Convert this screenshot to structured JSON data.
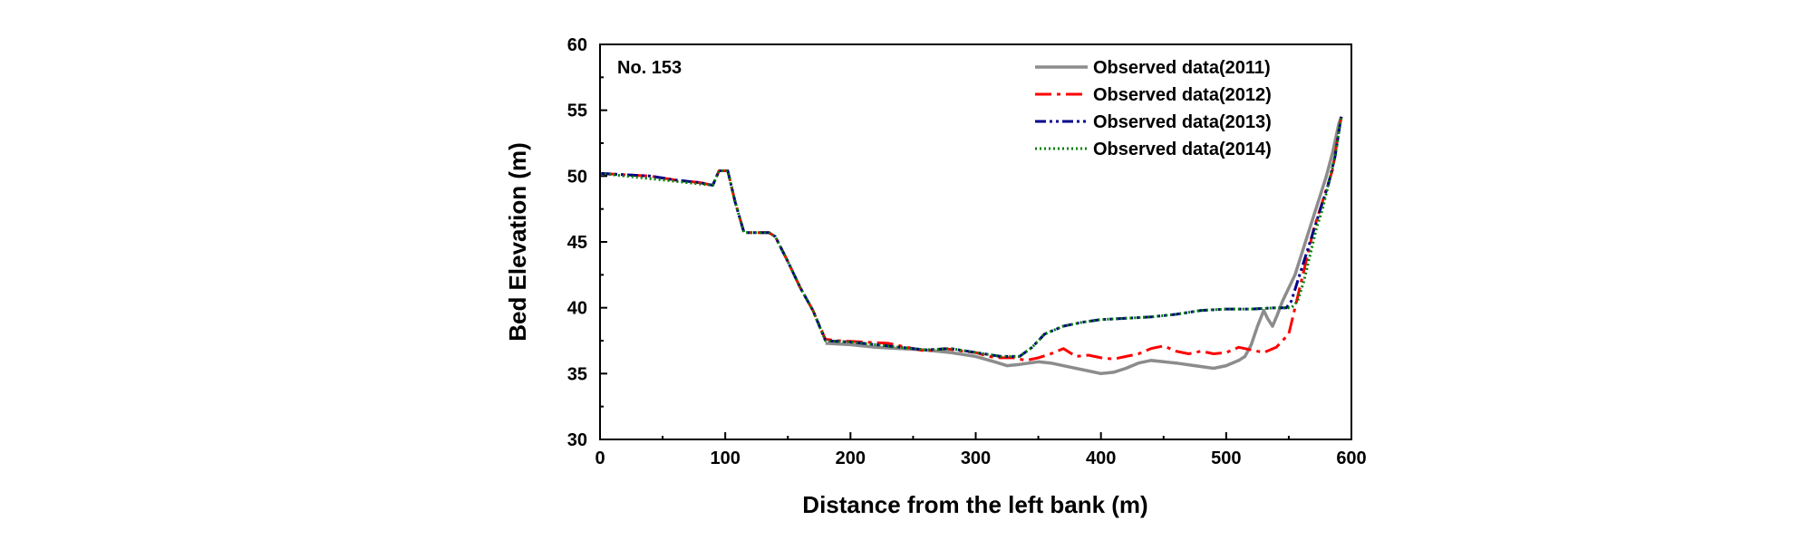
{
  "chart_data": {
    "type": "line",
    "annotation": "No. 153",
    "xlabel": "Distance from the left bank (m)",
    "ylabel": "Bed Elevation (m)",
    "xlim": [
      0,
      600
    ],
    "ylim": [
      30,
      60
    ],
    "x_ticks": [
      0,
      100,
      200,
      300,
      400,
      500,
      600
    ],
    "y_ticks": [
      30,
      35,
      40,
      45,
      50,
      55,
      60
    ],
    "grid": false,
    "legend_position": "top-right",
    "series": [
      {
        "name": "Observed data(2011)",
        "color": "#8c8c8c",
        "dash": "solid",
        "points": [
          [
            180,
            37.3
          ],
          [
            200,
            37.2
          ],
          [
            220,
            37.0
          ],
          [
            240,
            36.9
          ],
          [
            260,
            36.8
          ],
          [
            280,
            36.6
          ],
          [
            300,
            36.3
          ],
          [
            315,
            35.9
          ],
          [
            325,
            35.6
          ],
          [
            335,
            35.7
          ],
          [
            350,
            35.9
          ],
          [
            360,
            35.8
          ],
          [
            375,
            35.5
          ],
          [
            390,
            35.2
          ],
          [
            400,
            35.0
          ],
          [
            410,
            35.1
          ],
          [
            420,
            35.4
          ],
          [
            430,
            35.8
          ],
          [
            440,
            36.0
          ],
          [
            450,
            35.9
          ],
          [
            460,
            35.8
          ],
          [
            475,
            35.6
          ],
          [
            490,
            35.4
          ],
          [
            500,
            35.6
          ],
          [
            510,
            36.0
          ],
          [
            515,
            36.3
          ],
          [
            520,
            37.2
          ],
          [
            525,
            38.6
          ],
          [
            530,
            39.8
          ],
          [
            533,
            39.2
          ],
          [
            537,
            38.6
          ],
          [
            541,
            39.5
          ],
          [
            545,
            40.5
          ],
          [
            550,
            41.5
          ],
          [
            555,
            42.5
          ],
          [
            560,
            44.0
          ],
          [
            565,
            45.5
          ],
          [
            570,
            47.0
          ],
          [
            575,
            48.5
          ],
          [
            580,
            50.0
          ],
          [
            585,
            51.8
          ],
          [
            590,
            54.0
          ],
          [
            592,
            54.5
          ]
        ]
      },
      {
        "name": "Observed data(2012)",
        "color": "#ff0000",
        "dash": "dash-dot",
        "points": [
          [
            0,
            50.2
          ],
          [
            20,
            50.1
          ],
          [
            40,
            50.0
          ],
          [
            60,
            49.7
          ],
          [
            80,
            49.5
          ],
          [
            90,
            49.3
          ],
          [
            95,
            50.4
          ],
          [
            102,
            50.4
          ],
          [
            108,
            48.0
          ],
          [
            115,
            45.7
          ],
          [
            135,
            45.7
          ],
          [
            140,
            45.4
          ],
          [
            150,
            43.5
          ],
          [
            160,
            41.5
          ],
          [
            170,
            39.8
          ],
          [
            180,
            37.6
          ],
          [
            190,
            37.5
          ],
          [
            210,
            37.4
          ],
          [
            230,
            37.3
          ],
          [
            250,
            36.9
          ],
          [
            260,
            36.7
          ],
          [
            275,
            36.9
          ],
          [
            290,
            36.7
          ],
          [
            300,
            36.6
          ],
          [
            310,
            36.3
          ],
          [
            320,
            36.2
          ],
          [
            330,
            36.2
          ],
          [
            340,
            36.0
          ],
          [
            350,
            36.2
          ],
          [
            360,
            36.5
          ],
          [
            370,
            36.9
          ],
          [
            380,
            36.3
          ],
          [
            390,
            36.4
          ],
          [
            400,
            36.2
          ],
          [
            410,
            36.1
          ],
          [
            420,
            36.3
          ],
          [
            430,
            36.5
          ],
          [
            440,
            36.9
          ],
          [
            450,
            37.1
          ],
          [
            460,
            36.7
          ],
          [
            470,
            36.5
          ],
          [
            480,
            36.7
          ],
          [
            490,
            36.5
          ],
          [
            500,
            36.6
          ],
          [
            510,
            37.0
          ],
          [
            520,
            36.8
          ],
          [
            530,
            36.6
          ],
          [
            540,
            37.0
          ],
          [
            550,
            38.0
          ],
          [
            555,
            40.0
          ],
          [
            560,
            42.0
          ],
          [
            565,
            44.0
          ],
          [
            570,
            46.0
          ],
          [
            575,
            47.5
          ],
          [
            580,
            49.0
          ],
          [
            585,
            50.5
          ],
          [
            590,
            53.5
          ],
          [
            592,
            54.5
          ]
        ]
      },
      {
        "name": "Observed data(2013)",
        "color": "#00008b",
        "dash": "dash-dot-dot",
        "points": [
          [
            0,
            50.2
          ],
          [
            20,
            50.1
          ],
          [
            40,
            50.0
          ],
          [
            60,
            49.7
          ],
          [
            80,
            49.5
          ],
          [
            90,
            49.3
          ],
          [
            95,
            50.4
          ],
          [
            102,
            50.4
          ],
          [
            108,
            48.0
          ],
          [
            115,
            45.7
          ],
          [
            135,
            45.7
          ],
          [
            140,
            45.4
          ],
          [
            150,
            43.5
          ],
          [
            160,
            41.5
          ],
          [
            170,
            39.8
          ],
          [
            180,
            37.5
          ],
          [
            200,
            37.4
          ],
          [
            220,
            37.2
          ],
          [
            240,
            37.0
          ],
          [
            260,
            36.8
          ],
          [
            280,
            36.9
          ],
          [
            300,
            36.6
          ],
          [
            320,
            36.3
          ],
          [
            335,
            36.3
          ],
          [
            345,
            37.0
          ],
          [
            355,
            38.0
          ],
          [
            370,
            38.6
          ],
          [
            385,
            38.9
          ],
          [
            400,
            39.1
          ],
          [
            420,
            39.2
          ],
          [
            440,
            39.3
          ],
          [
            460,
            39.5
          ],
          [
            480,
            39.8
          ],
          [
            500,
            39.9
          ],
          [
            520,
            39.9
          ],
          [
            540,
            40.0
          ],
          [
            548,
            40.0
          ],
          [
            552,
            40.5
          ],
          [
            557,
            42.0
          ],
          [
            562,
            43.5
          ],
          [
            567,
            45.0
          ],
          [
            572,
            46.5
          ],
          [
            577,
            48.0
          ],
          [
            582,
            49.5
          ],
          [
            587,
            51.5
          ],
          [
            591,
            54.0
          ],
          [
            592,
            54.5
          ]
        ]
      },
      {
        "name": "Observed data(2014)",
        "color": "#008000",
        "dash": "dotted",
        "points": [
          [
            0,
            50.2
          ],
          [
            20,
            50.0
          ],
          [
            40,
            49.8
          ],
          [
            60,
            49.6
          ],
          [
            80,
            49.4
          ],
          [
            90,
            49.3
          ],
          [
            95,
            50.4
          ],
          [
            102,
            50.4
          ],
          [
            108,
            48.0
          ],
          [
            115,
            45.7
          ],
          [
            135,
            45.7
          ],
          [
            140,
            45.4
          ],
          [
            150,
            43.5
          ],
          [
            160,
            41.5
          ],
          [
            170,
            39.8
          ],
          [
            180,
            37.5
          ],
          [
            200,
            37.4
          ],
          [
            220,
            37.2
          ],
          [
            240,
            37.0
          ],
          [
            260,
            36.8
          ],
          [
            280,
            36.9
          ],
          [
            300,
            36.6
          ],
          [
            320,
            36.3
          ],
          [
            335,
            36.3
          ],
          [
            345,
            37.0
          ],
          [
            355,
            38.0
          ],
          [
            370,
            38.6
          ],
          [
            385,
            38.9
          ],
          [
            400,
            39.1
          ],
          [
            420,
            39.2
          ],
          [
            440,
            39.3
          ],
          [
            460,
            39.5
          ],
          [
            480,
            39.8
          ],
          [
            500,
            39.9
          ],
          [
            520,
            39.9
          ],
          [
            540,
            40.0
          ],
          [
            552,
            40.0
          ],
          [
            557,
            40.5
          ],
          [
            562,
            42.0
          ],
          [
            567,
            44.0
          ],
          [
            572,
            46.0
          ],
          [
            577,
            47.5
          ],
          [
            582,
            49.5
          ],
          [
            587,
            51.5
          ],
          [
            591,
            54.0
          ],
          [
            592,
            54.5
          ]
        ]
      }
    ]
  }
}
